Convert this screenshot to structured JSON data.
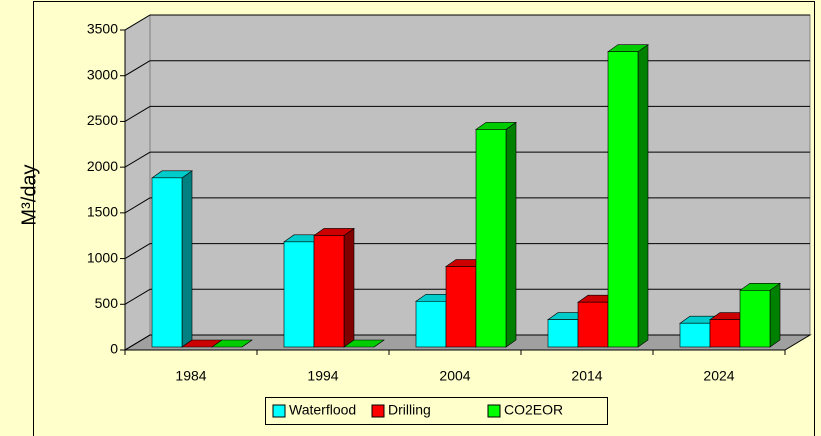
{
  "chart_data": {
    "type": "bar3d",
    "y_label": "M³/day",
    "categories": [
      "1984",
      "1994",
      "2004",
      "2014",
      "2024"
    ],
    "series": [
      {
        "name": "Waterflood",
        "color": "#00ffff",
        "values": [
          1850,
          1150,
          500,
          300,
          260
        ]
      },
      {
        "name": "Drilling",
        "color": "#ff0000",
        "values": [
          0,
          1220,
          880,
          490,
          300
        ]
      },
      {
        "name": "CO2EOR",
        "color": "#00ff00",
        "values": [
          0,
          0,
          2380,
          3230,
          620
        ]
      }
    ],
    "ylim": [
      0,
      3500
    ],
    "yticks": [
      0,
      500,
      1000,
      1500,
      2000,
      2500,
      3000,
      3500
    ],
    "grid": true,
    "legend": "bottom"
  }
}
